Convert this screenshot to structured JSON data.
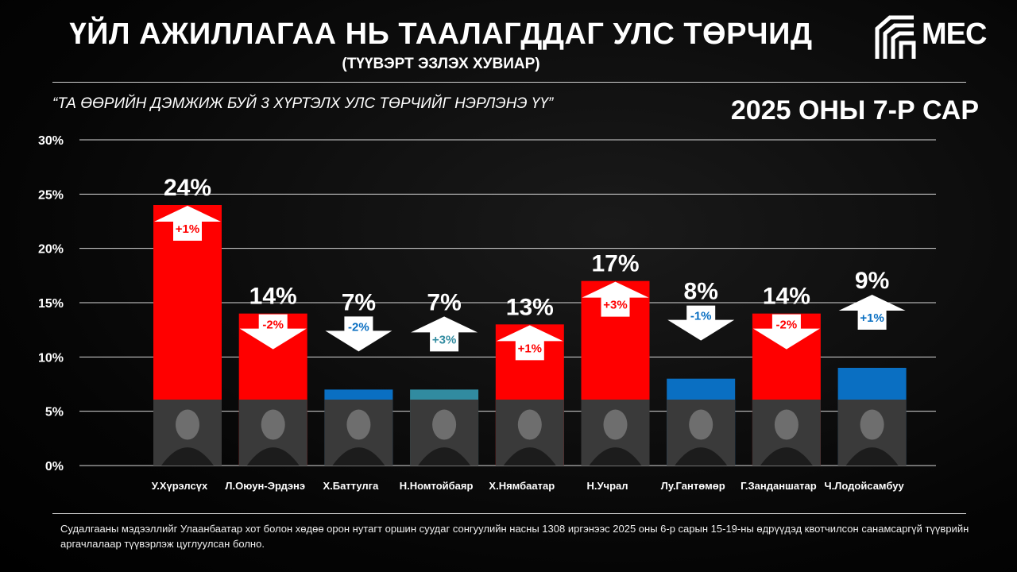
{
  "header": {
    "title": "ҮЙЛ АЖИЛЛАГАА НЬ ТААЛАГДДАГ УЛС ТӨРЧИД",
    "subtitle": "(ТҮҮВЭРТ ЭЗЛЭХ ХУВИАР)",
    "question": "“ТА ӨӨРИЙН ДЭМЖИЖ БУЙ 3 ХҮРТЭЛХ УЛС ТӨРЧИЙГ НЭРЛЭНЭ ҮҮ”",
    "period": "2025 ОНЫ 7-Р САР",
    "logo_text": "MEC"
  },
  "colors": {
    "red": "#ff0000",
    "blue": "#0a6fc2",
    "teal": "#318ba0",
    "white": "#ffffff"
  },
  "chart_data": {
    "type": "bar",
    "categories": [
      "У.Хүрэлсүх",
      "Л.Оюун-Эрдэнэ",
      "Х.Баттулга",
      "Н.Номтойбаяр",
      "Х.Нямбаатар",
      "Н.Учрал",
      "Лу.Гантөмөр",
      "Г.Занданшатар",
      "Ч.Лодойсамбуу"
    ],
    "values": [
      24,
      14,
      7,
      7,
      13,
      17,
      8,
      14,
      9
    ],
    "value_labels": [
      "24%",
      "14%",
      "7%",
      "7%",
      "13%",
      "17%",
      "8%",
      "14%",
      "9%"
    ],
    "bar_colors": [
      "red",
      "red",
      "blue",
      "teal",
      "red",
      "red",
      "blue",
      "red",
      "blue"
    ],
    "changes": [
      "+1%",
      "-2%",
      "-2%",
      "+3%",
      "+1%",
      "+3%",
      "-1%",
      "-2%",
      "+1%"
    ],
    "y_ticks": [
      "0%",
      "5%",
      "10%",
      "15%",
      "20%",
      "25%",
      "30%"
    ],
    "ylim": [
      0,
      30
    ],
    "grid": true
  },
  "footnote": "Судалгааны мэдээллийг Улаанбаатар хот болон хөдөө орон нутагт оршин суудаг сонгуулийн насны 1308 иргэнээс 2025 оны 6-р сарын 15-19-ны өдрүүдэд квотчилсон санамсаргүй түүврийн аргачлалаар түүвэрлэж цуглуулсан болно."
}
